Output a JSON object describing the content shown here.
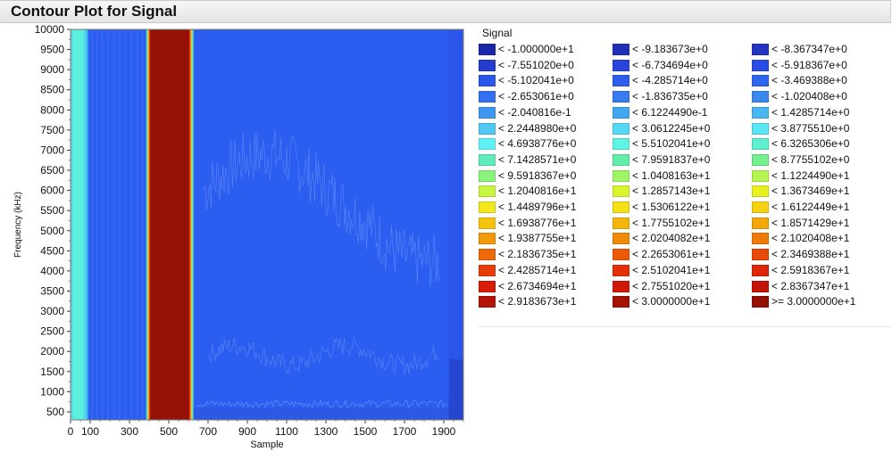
{
  "window": {
    "title": "Contour Plot for Signal"
  },
  "chart_data": {
    "type": "heatmap",
    "title": "Contour Plot for Signal",
    "xlabel": "Sample",
    "ylabel": "Frequency (kHz)",
    "xlim": [
      0,
      2000
    ],
    "ylim": [
      300,
      10000
    ],
    "x_ticks": [
      0,
      100,
      300,
      500,
      700,
      900,
      1100,
      1300,
      1500,
      1700,
      1900
    ],
    "y_ticks": [
      500,
      1000,
      1500,
      2000,
      2500,
      3000,
      3500,
      4000,
      4500,
      5000,
      5500,
      6000,
      6500,
      7000,
      7500,
      8000,
      8500,
      9000,
      9500,
      10000
    ],
    "bands": [
      {
        "x0": 0,
        "x1": 10,
        "color": "#5fd1de"
      },
      {
        "x0": 10,
        "x1": 65,
        "color": "#55f0da"
      },
      {
        "x0": 65,
        "x1": 80,
        "color": "#4cd3ec"
      },
      {
        "x0": 80,
        "x1": 90,
        "color": "#37b4ee"
      },
      {
        "x0": 90,
        "x1": 385,
        "color": "#2b5ef0"
      },
      {
        "x0": 385,
        "x1": 393,
        "color": "#50e8c8"
      },
      {
        "x0": 393,
        "x1": 399,
        "color": "#ffc107"
      },
      {
        "x0": 399,
        "x1": 405,
        "color": "#ee3f0e"
      },
      {
        "x0": 405,
        "x1": 605,
        "color": "#971206"
      },
      {
        "x0": 605,
        "x1": 611,
        "color": "#ee3f0e"
      },
      {
        "x0": 611,
        "x1": 617,
        "color": "#ffc107"
      },
      {
        "x0": 617,
        "x1": 626,
        "color": "#50e8c8"
      },
      {
        "x0": 626,
        "x1": 1925,
        "color": "#2b5ef0"
      },
      {
        "x0": 1925,
        "x1": 2000,
        "color": "#2a55e8"
      }
    ],
    "legend": {
      "title": "Signal",
      "placement": "right",
      "entries": [
        {
          "label": "< -1.000000e+1",
          "color": "#1b27a8"
        },
        {
          "label": "< -9.183673e+0",
          "color": "#1f2fb6"
        },
        {
          "label": "< -8.367347e+0",
          "color": "#2335c0"
        },
        {
          "label": "< -7.551020e+0",
          "color": "#263cce"
        },
        {
          "label": "< -6.734694e+0",
          "color": "#2844db"
        },
        {
          "label": "< -5.918367e+0",
          "color": "#2b4ce4"
        },
        {
          "label": "< -5.102041e+0",
          "color": "#2c55ea"
        },
        {
          "label": "< -4.285714e+0",
          "color": "#2e5ded"
        },
        {
          "label": "< -3.469388e+0",
          "color": "#2f66ee"
        },
        {
          "label": "< -2.653061e+0",
          "color": "#3370ef"
        },
        {
          "label": "< -1.836735e+0",
          "color": "#367cf0"
        },
        {
          "label": "< -1.020408e+0",
          "color": "#3a88f0"
        },
        {
          "label": "< -2.040816e-1",
          "color": "#3e96f0"
        },
        {
          "label": "< 6.1224490e-1",
          "color": "#43a6f1"
        },
        {
          "label": "< 1.4285714e+0",
          "color": "#48b6f2"
        },
        {
          "label": "< 2.2448980e+0",
          "color": "#4fc8f3"
        },
        {
          "label": "< 3.0612245e+0",
          "color": "#55d8f5"
        },
        {
          "label": "< 3.8775510e+0",
          "color": "#5ae6f6"
        },
        {
          "label": "< 4.6938776e+0",
          "color": "#5ef2f6"
        },
        {
          "label": "< 5.5102041e+0",
          "color": "#5ef4e4"
        },
        {
          "label": "< 6.3265306e+0",
          "color": "#5ef0cf"
        },
        {
          "label": "< 7.1428571e+0",
          "color": "#5eedb8"
        },
        {
          "label": "< 7.9591837e+0",
          "color": "#62eea6"
        },
        {
          "label": "< 8.7755102e+0",
          "color": "#74f08f"
        },
        {
          "label": "< 9.5918367e+0",
          "color": "#8af37a"
        },
        {
          "label": "< 1.0408163e+1",
          "color": "#a0f566"
        },
        {
          "label": "< 1.1224490e+1",
          "color": "#b6f552"
        },
        {
          "label": "< 1.2040816e+1",
          "color": "#c8f540"
        },
        {
          "label": "< 1.2857143e+1",
          "color": "#dbf42e"
        },
        {
          "label": "< 1.3673469e+1",
          "color": "#e9f020"
        },
        {
          "label": "< 1.4489796e+1",
          "color": "#f2e81a"
        },
        {
          "label": "< 1.5306122e+1",
          "color": "#f6e016"
        },
        {
          "label": "< 1.6122449e+1",
          "color": "#f6d212"
        },
        {
          "label": "< 1.6938776e+1",
          "color": "#f6c40e"
        },
        {
          "label": "< 1.7755102e+1",
          "color": "#f5b50c"
        },
        {
          "label": "< 1.8571429e+1",
          "color": "#f4a70b"
        },
        {
          "label": "< 1.9387755e+1",
          "color": "#f3990a"
        },
        {
          "label": "< 2.0204082e+1",
          "color": "#f28a09"
        },
        {
          "label": "< 2.1020408e+1",
          "color": "#f07a08"
        },
        {
          "label": "< 2.1836735e+1",
          "color": "#ee6a08"
        },
        {
          "label": "< 2.2653061e+1",
          "color": "#ec5a08"
        },
        {
          "label": "< 2.3469388e+1",
          "color": "#ea4a08"
        },
        {
          "label": "< 2.4285714e+1",
          "color": "#e73c08"
        },
        {
          "label": "< 2.5102041e+1",
          "color": "#e42f08"
        },
        {
          "label": "< 2.5918367e+1",
          "color": "#e02408"
        },
        {
          "label": "< 2.6734694e+1",
          "color": "#d81c08"
        },
        {
          "label": "< 2.7551020e+1",
          "color": "#ce1808"
        },
        {
          "label": "< 2.8367347e+1",
          "color": "#c21508"
        },
        {
          "label": "< 2.9183673e+1",
          "color": "#b41307"
        },
        {
          "label": "< 3.0000000e+1",
          "color": "#a51206"
        },
        {
          "label": ">= 3.0000000e+1",
          "color": "#941005"
        }
      ]
    }
  }
}
